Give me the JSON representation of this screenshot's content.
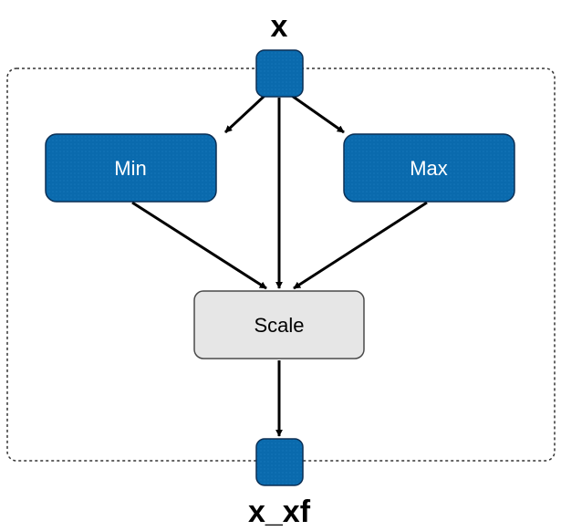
{
  "input": {
    "label": "x"
  },
  "output": {
    "label": "x_xf"
  },
  "nodes": {
    "min": {
      "label": "Min"
    },
    "max": {
      "label": "Max"
    },
    "scale": {
      "label": "Scale"
    }
  },
  "colors": {
    "blue_fill": "#0a6aad",
    "blue_stroke": "#0b2f55",
    "scale_fill": "#e6e6e6",
    "scale_stroke": "#4a4a4a",
    "edge": "#000000",
    "group_border": "#333333",
    "label_light": "#ffffff",
    "label_dark": "#000000"
  },
  "edges": [
    {
      "from": "x",
      "to": "min"
    },
    {
      "from": "x",
      "to": "max"
    },
    {
      "from": "x",
      "to": "scale"
    },
    {
      "from": "min",
      "to": "scale"
    },
    {
      "from": "max",
      "to": "scale"
    },
    {
      "from": "scale",
      "to": "x_xf"
    }
  ]
}
